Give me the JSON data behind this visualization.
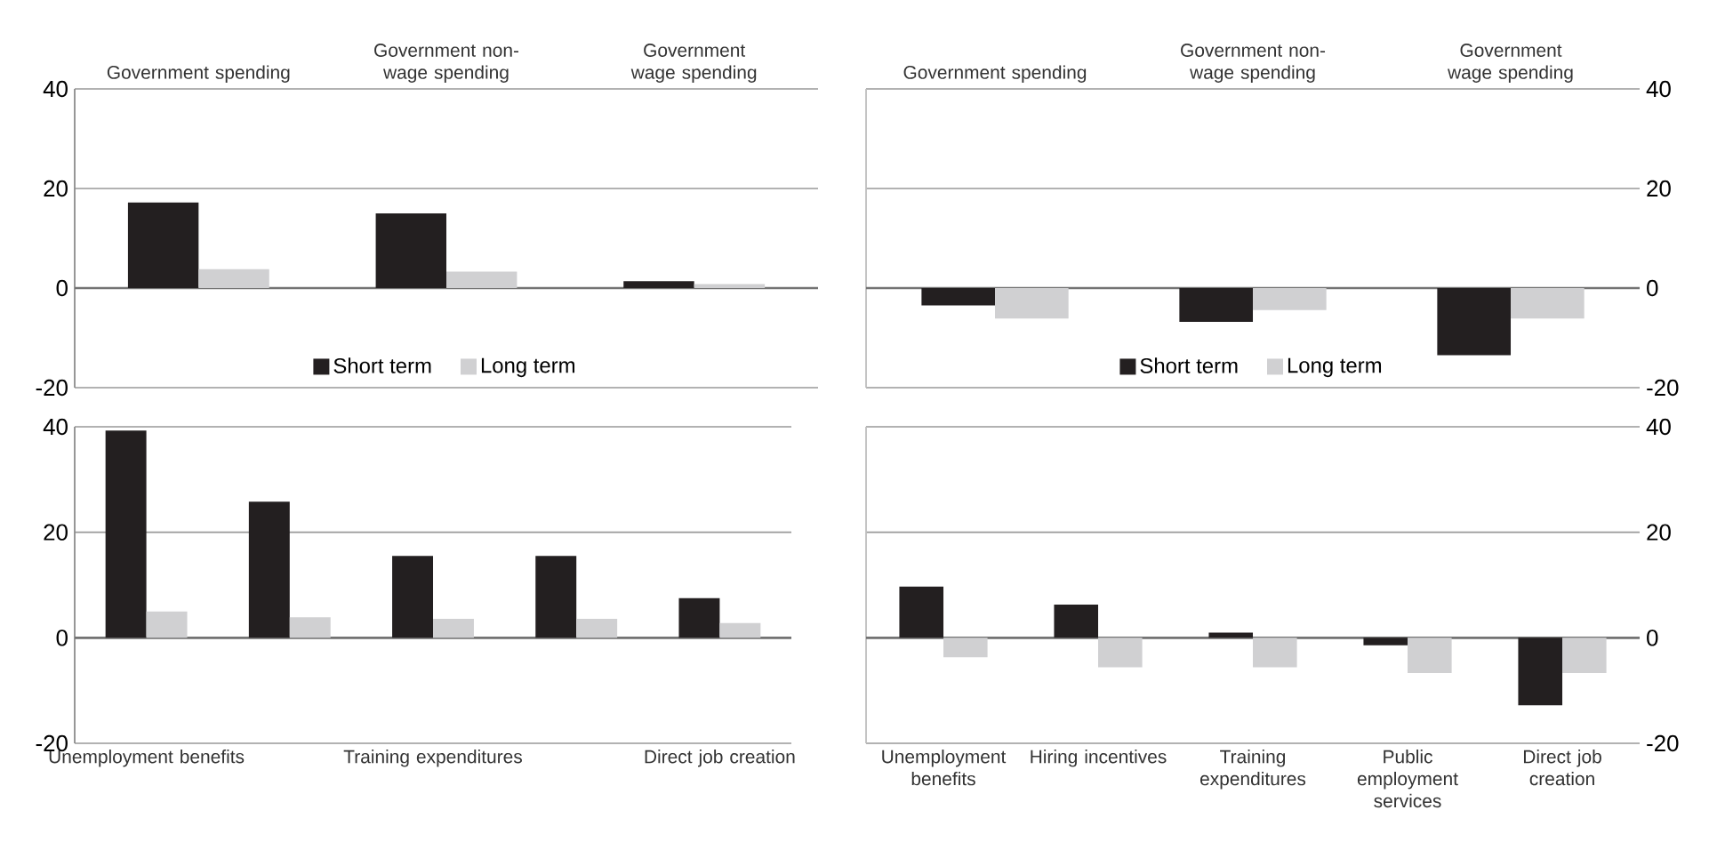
{
  "chart_data": [
    {
      "type": "bar",
      "categories": [
        "Government spending",
        "Government non-wage spending",
        "Government wage spending"
      ],
      "series": [
        {
          "name": "Short term",
          "color": "#231f20",
          "values": [
            17.2,
            15.0,
            1.4
          ]
        },
        {
          "name": "Long term",
          "color": "#d0d0d2",
          "values": [
            3.8,
            3.3,
            0.8
          ]
        }
      ],
      "ylim": [
        -20,
        40
      ],
      "yticks": [
        -20,
        0,
        20,
        40
      ],
      "grid": "y",
      "legend": "bottom"
    },
    {
      "type": "bar",
      "categories": [
        "Government spending",
        "Government non-wage spending",
        "Government wage spending"
      ],
      "series": [
        {
          "name": "Short term",
          "color": "#231f20",
          "values": [
            -3.5,
            -6.8,
            -13.5
          ]
        },
        {
          "name": "Long term",
          "color": "#d0d0d2",
          "values": [
            -6.1,
            -4.4,
            -6.1
          ]
        }
      ],
      "ylim": [
        -20,
        40
      ],
      "yticks": [
        -20,
        0,
        20,
        40
      ],
      "grid": "y",
      "legend": "bottom"
    },
    {
      "type": "bar",
      "categories": [
        "Unemployment benefits",
        null,
        "Training expenditures",
        null,
        "Direct job creation"
      ],
      "series": [
        {
          "color": "#231f20",
          "values": [
            39.3,
            25.8,
            15.5,
            15.5,
            7.5
          ]
        },
        {
          "color": "#d0d0d2",
          "values": [
            5.0,
            3.9,
            3.6,
            3.6,
            2.8
          ]
        }
      ],
      "ylim": [
        -20,
        40
      ],
      "yticks": [
        -20,
        0,
        20,
        40
      ],
      "grid": "y"
    },
    {
      "type": "bar",
      "categories": [
        "Unemployment benefits",
        "Hiring incentives",
        "Training expenditures",
        "Public employment services",
        "Direct job creation"
      ],
      "series": [
        {
          "color": "#231f20",
          "values": [
            9.7,
            6.3,
            1.0,
            -1.4,
            -12.8
          ]
        },
        {
          "color": "#d0d0d2",
          "values": [
            -3.7,
            -5.6,
            -5.6,
            -6.7,
            -6.7
          ]
        }
      ],
      "ylim": [
        -20,
        40
      ],
      "yticks": [
        -20,
        0,
        20,
        40
      ],
      "grid": "y"
    }
  ]
}
